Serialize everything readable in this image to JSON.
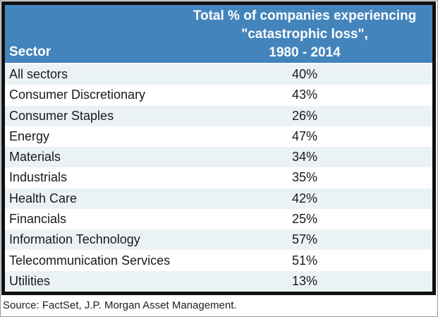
{
  "chart_data": {
    "type": "table",
    "title": "Total % of companies experiencing \"catastrophic loss\", 1980 - 2014",
    "columns": [
      "Sector",
      "Total % of companies experiencing \"catastrophic loss\", 1980 - 2014"
    ],
    "categories": [
      "All sectors",
      "Consumer Discretionary",
      "Consumer Staples",
      "Energy",
      "Materials",
      "Industrials",
      "Health Care",
      "Financials",
      "Information Technology",
      "Telecommunication Services",
      "Utilities"
    ],
    "values": [
      40,
      43,
      26,
      47,
      34,
      35,
      42,
      25,
      57,
      51,
      13
    ],
    "value_labels": [
      "40%",
      "43%",
      "26%",
      "47%",
      "34%",
      "35%",
      "42%",
      "25%",
      "57%",
      "51%",
      "13%"
    ],
    "source": "Source: FactSet, J.P. Morgan Asset Management."
  },
  "header": {
    "sector_label": "Sector",
    "title_line1": "Total % of companies experiencing",
    "title_line2": "\"catastrophic loss\",",
    "title_line3": "1980 - 2014"
  },
  "rows": [
    {
      "sector": "All sectors",
      "value": "40%"
    },
    {
      "sector": "Consumer Discretionary",
      "value": "43%"
    },
    {
      "sector": "Consumer Staples",
      "value": "26%"
    },
    {
      "sector": "Energy",
      "value": "47%"
    },
    {
      "sector": "Materials",
      "value": "34%"
    },
    {
      "sector": "Industrials",
      "value": "35%"
    },
    {
      "sector": "Health Care",
      "value": "42%"
    },
    {
      "sector": "Financials",
      "value": "25%"
    },
    {
      "sector": "Information Technology",
      "value": "57%"
    },
    {
      "sector": "Telecommunication Services",
      "value": "51%"
    },
    {
      "sector": "Utilities",
      "value": "13%"
    }
  ],
  "source_note": "Source: FactSet, J.P. Morgan Asset Management.",
  "colors": {
    "header_bg": "#4484BC",
    "header_text": "#FFFFFF",
    "row_stripe": "#EBF2F6",
    "row_white": "#FFFFFF",
    "body_text": "#1A1A1A",
    "table_border": "#101010"
  }
}
